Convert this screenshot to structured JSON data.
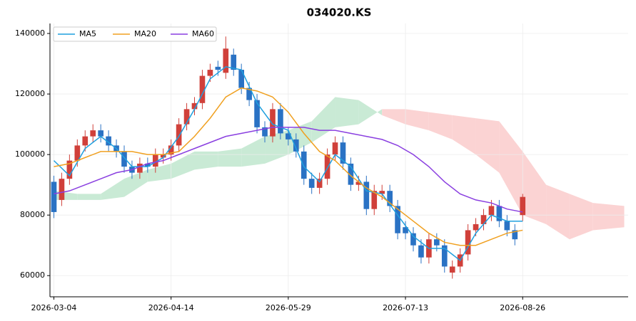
{
  "chart_data": {
    "type": "candlestick",
    "title": "034020.KS",
    "x": [
      0,
      2,
      4,
      6,
      8,
      10,
      12,
      14,
      16,
      18,
      20,
      22,
      24,
      26,
      28,
      30,
      32,
      34,
      36,
      38,
      40,
      42,
      44,
      46,
      48,
      50,
      52,
      54,
      56,
      58,
      60,
      62,
      64,
      66,
      68,
      70,
      72,
      74,
      76,
      78,
      80,
      82,
      84,
      86,
      88,
      90,
      92,
      94,
      96,
      98,
      100,
      102,
      104,
      106,
      108,
      110,
      112,
      114,
      116,
      118,
      120
    ],
    "open": [
      91000,
      85000,
      92000,
      98000,
      103000,
      106000,
      108000,
      106000,
      103000,
      101000,
      96000,
      94000,
      97000,
      96000,
      99000,
      100000,
      103000,
      110000,
      115000,
      117000,
      126000,
      129000,
      127000,
      133000,
      128000,
      122000,
      118000,
      109000,
      106000,
      115000,
      107000,
      105000,
      101000,
      92000,
      89000,
      92000,
      100000,
      104000,
      97000,
      90000,
      91000,
      82000,
      87000,
      88000,
      83000,
      76000,
      74000,
      70000,
      66000,
      72000,
      70000,
      61000,
      63000,
      67000,
      75000,
      77000,
      80000,
      83000,
      78000,
      75000,
      80000
    ],
    "high": [
      93000,
      94000,
      100000,
      105000,
      108000,
      110000,
      110000,
      108000,
      105000,
      103000,
      98000,
      99000,
      99000,
      102000,
      102000,
      105000,
      112000,
      117000,
      119000,
      128000,
      130000,
      131000,
      139000,
      135000,
      130000,
      124000,
      120000,
      111000,
      117000,
      117000,
      109000,
      107000,
      103000,
      94000,
      94000,
      102000,
      106000,
      106000,
      99000,
      93000,
      93000,
      90000,
      90000,
      90000,
      85000,
      78000,
      76000,
      72000,
      74000,
      74000,
      72000,
      65000,
      69000,
      77000,
      79000,
      82000,
      85000,
      85000,
      80000,
      77000,
      87000
    ],
    "low": [
      79000,
      83000,
      90000,
      96000,
      101000,
      104000,
      104000,
      101000,
      99000,
      94000,
      92000,
      92000,
      94000,
      94000,
      97000,
      98000,
      101000,
      108000,
      113000,
      115000,
      124000,
      126000,
      125000,
      126000,
      120000,
      116000,
      107000,
      104000,
      104000,
      105000,
      103000,
      99000,
      90000,
      87000,
      87000,
      90000,
      98000,
      95000,
      88000,
      88000,
      80000,
      80000,
      85000,
      81000,
      72000,
      72000,
      68000,
      64000,
      64000,
      68000,
      61000,
      59000,
      61000,
      65000,
      73000,
      75000,
      78000,
      76000,
      73000,
      70000,
      78000
    ],
    "close": [
      81000,
      92000,
      98000,
      103000,
      106000,
      108000,
      106000,
      103000,
      101000,
      96000,
      94000,
      97000,
      96000,
      100000,
      100000,
      103000,
      110000,
      115000,
      117000,
      126000,
      128000,
      128000,
      135000,
      128000,
      122000,
      118000,
      109000,
      106000,
      115000,
      107000,
      105000,
      101000,
      92000,
      89000,
      92000,
      100000,
      104000,
      97000,
      90000,
      91000,
      82000,
      88000,
      88000,
      83000,
      74000,
      74000,
      70000,
      66000,
      72000,
      70000,
      63000,
      63000,
      67000,
      75000,
      77000,
      80000,
      83000,
      78000,
      75000,
      72000,
      86000
    ],
    "up_color": "#d0403a",
    "down_color": "#2a72c4",
    "series": [
      {
        "name": "MA5",
        "color": "#1f9fde",
        "x": [
          0,
          4,
          8,
          12,
          16,
          20,
          24,
          28,
          32,
          36,
          40,
          44,
          48,
          52,
          56,
          60,
          64,
          68,
          72,
          76,
          80,
          84,
          88,
          92,
          96,
          100,
          104,
          108,
          112,
          116,
          120
        ],
        "values": [
          98000,
          93000,
          102000,
          106000,
          102000,
          96000,
          96000,
          99000,
          106000,
          115000,
          125000,
          129000,
          128000,
          117000,
          110000,
          108000,
          96000,
          91000,
          100000,
          96000,
          88000,
          87000,
          80000,
          73000,
          69000,
          69000,
          65000,
          74000,
          80000,
          78000,
          78000
        ]
      },
      {
        "name": "MA20",
        "color": "#f0a020",
        "x": [
          0,
          4,
          8,
          12,
          16,
          20,
          24,
          28,
          32,
          36,
          40,
          44,
          48,
          52,
          56,
          60,
          64,
          68,
          72,
          76,
          80,
          84,
          88,
          92,
          96,
          100,
          104,
          108,
          112,
          116,
          120
        ],
        "values": [
          96000,
          97000,
          99000,
          101000,
          101000,
          101000,
          100000,
          100000,
          101000,
          106000,
          112000,
          119000,
          122000,
          121000,
          119000,
          114000,
          107000,
          101000,
          98000,
          93000,
          89000,
          86000,
          82000,
          78000,
          74000,
          71000,
          70000,
          70000,
          72000,
          74000,
          75000
        ]
      },
      {
        "name": "MA60",
        "color": "#8a3fe0",
        "x": [
          0,
          4,
          8,
          12,
          16,
          20,
          24,
          28,
          32,
          36,
          40,
          44,
          48,
          52,
          56,
          60,
          64,
          68,
          72,
          76,
          80,
          84,
          88,
          92,
          96,
          100,
          104,
          108,
          112,
          116,
          120
        ],
        "values": [
          87000,
          88000,
          90000,
          92000,
          94000,
          95000,
          97000,
          98000,
          100000,
          102000,
          104000,
          106000,
          107000,
          108000,
          109000,
          109000,
          109000,
          108000,
          108000,
          107000,
          106000,
          105000,
          103000,
          100000,
          96000,
          91000,
          87000,
          85000,
          84000,
          82000,
          81000
        ]
      }
    ],
    "cloud": {
      "x": [
        0,
        6,
        12,
        18,
        24,
        30,
        36,
        42,
        48,
        54,
        60,
        66,
        72,
        78,
        84,
        90,
        96,
        102,
        108,
        114,
        120,
        126,
        132,
        138,
        146
      ],
      "span_a": [
        88000,
        87000,
        87000,
        92000,
        95000,
        97000,
        101000,
        101000,
        102000,
        106000,
        108000,
        111000,
        119000,
        118000,
        113000,
        110000,
        108000,
        105000,
        100000,
        94000,
        80000,
        77000,
        72000,
        75000,
        76000
      ],
      "span_b": [
        85000,
        85000,
        85000,
        86000,
        91000,
        92000,
        95000,
        96000,
        96000,
        97000,
        100000,
        104000,
        109000,
        110000,
        115000,
        115000,
        114000,
        113000,
        112000,
        111000,
        101000,
        90000,
        87000,
        84000,
        83000
      ],
      "up_color": "#c9ead5",
      "down_color": "#fbd3d3"
    },
    "xlim": [
      -1,
      147
    ],
    "ylim": [
      53000,
      143300
    ],
    "yticks": [
      60000,
      80000,
      100000,
      120000,
      140000
    ],
    "xticks": [
      {
        "value": 0,
        "label": "2026-03-04"
      },
      {
        "value": 30,
        "label": "2026-04-14"
      },
      {
        "value": 60,
        "label": "2026-05-29"
      },
      {
        "value": 90,
        "label": "2026-07-13"
      },
      {
        "value": 120,
        "label": "2026-08-26"
      }
    ],
    "grid": true,
    "legend": "upper left"
  }
}
